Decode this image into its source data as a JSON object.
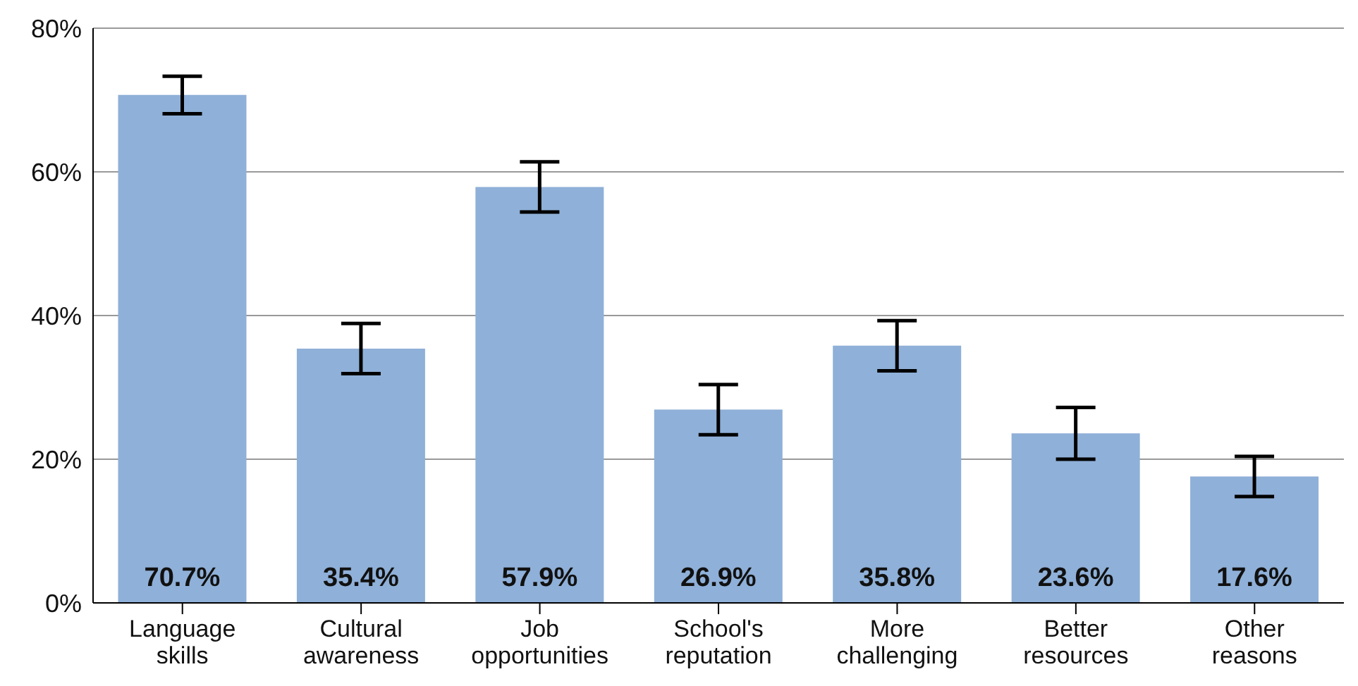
{
  "chart_data": {
    "type": "bar",
    "categories": [
      "Language skills",
      "Cultural awareness",
      "Job opportunities",
      "School's reputation",
      "More challenging",
      "Better resources",
      "Other reasons"
    ],
    "values": [
      70.7,
      35.4,
      57.9,
      26.9,
      35.8,
      23.6,
      17.6
    ],
    "errors": [
      2.6,
      3.5,
      3.5,
      3.5,
      3.5,
      3.6,
      2.8
    ],
    "value_labels": [
      "70.7%",
      "35.4%",
      "57.9%",
      "26.9%",
      "35.8%",
      "23.6%",
      "17.6%"
    ],
    "color": "#8fb0d8",
    "ylim": [
      0,
      80
    ],
    "yticks": [
      {
        "value": 0,
        "label": "0%"
      },
      {
        "value": 20,
        "label": "20%"
      },
      {
        "value": 40,
        "label": "40%"
      },
      {
        "value": 60,
        "label": "60%"
      },
      {
        "value": 80,
        "label": "80%"
      }
    ],
    "grid": "y",
    "legend": false
  }
}
